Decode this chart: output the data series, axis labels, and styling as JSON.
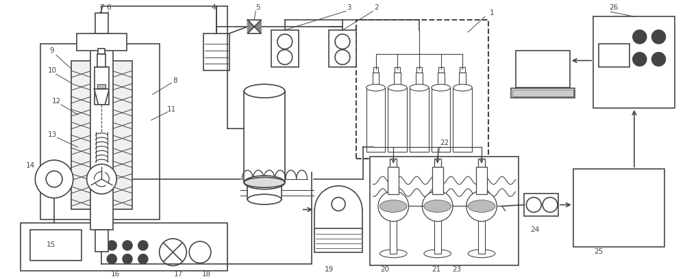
{
  "bg_color": "#ffffff",
  "line_color": "#444444",
  "line_width": 1.2,
  "figsize": [
    10.0,
    4.08
  ],
  "dpi": 100
}
